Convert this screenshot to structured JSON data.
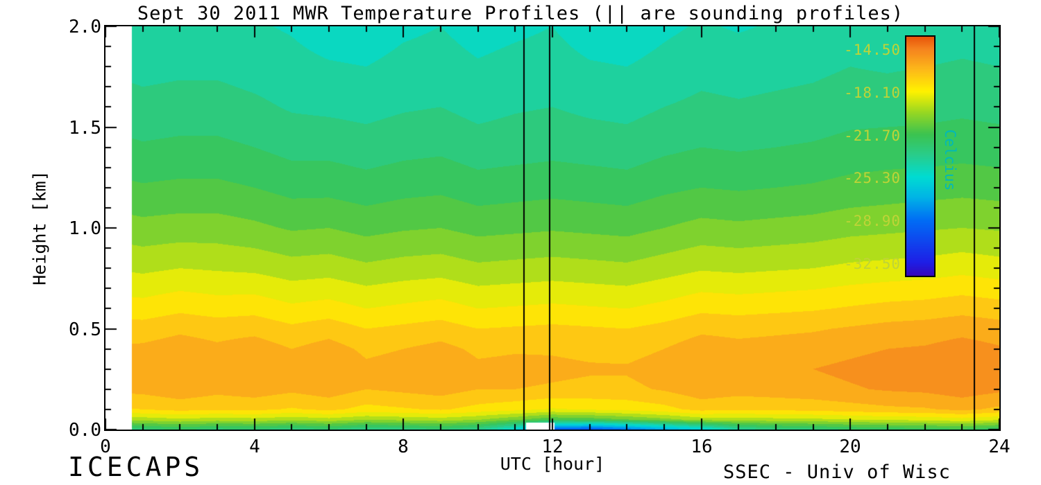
{
  "title": "Sept 30 2011 MWR Temperature Profiles (|| are sounding profiles)",
  "xlabel": "UTC [hour]",
  "ylabel": "Height [km]",
  "footer_left": "ICECAPS",
  "footer_right": "SSEC - Univ of Wisc",
  "axes": {
    "x_tick_labels": [
      "0",
      "4",
      "8",
      "12",
      "16",
      "20",
      "24"
    ],
    "x_tick_values": [
      0,
      4,
      8,
      12,
      16,
      20,
      24
    ],
    "x_minor_step_hours": 1,
    "y_tick_labels": [
      "2.0",
      "1.5",
      "1.0",
      "0.5",
      "0.0"
    ],
    "y_tick_values": [
      2.0,
      1.5,
      1.0,
      0.5,
      0.0
    ],
    "y_minor_step_km": 0.1
  },
  "colorbar": {
    "label": "Celcius",
    "ticks": [
      "-14.50",
      "-18.10",
      "-21.70",
      "-25.30",
      "-28.90",
      "-32.50"
    ],
    "tick_values": [
      -14.5,
      -18.1,
      -21.7,
      -25.3,
      -28.9,
      -32.5
    ],
    "top_value_c": -13.5,
    "bottom_value_c": -33.6,
    "tick_text_color": "#bfd437",
    "label_text_color": "#00b9b9"
  },
  "chart_data": {
    "type": "heatmap",
    "title": "Sept 30 2011 MWR Temperature Profiles (|| are sounding profiles)",
    "xlabel": "UTC [hour]",
    "ylabel": "Height [km]",
    "x_range_hours": [
      0,
      24
    ],
    "y_range_km": [
      0,
      2
    ],
    "data_start_hour": 0.7,
    "sounding_line_hours": [
      11.23,
      11.92,
      23.33
    ],
    "surface_gap": {
      "start_hour": 11.3,
      "end_hour": 12.05,
      "max_height_km": 0.035
    },
    "contour_interval_c": 0.9,
    "contour_ref_c": -14.5,
    "x_hours": [
      0,
      1,
      2,
      3,
      4,
      5,
      6,
      7,
      8,
      9,
      10,
      11,
      12,
      13,
      14,
      15,
      16,
      17,
      18,
      19,
      20,
      21,
      22,
      23,
      24
    ],
    "y_heights_km": [
      0.0,
      0.05,
      0.1,
      0.2,
      0.3,
      0.4,
      0.5,
      0.6,
      0.8,
      1.0,
      1.2,
      1.4,
      1.6,
      1.8,
      2.0
    ],
    "temperature_c_by_level": [
      [
        -23.5,
        -23.0,
        -22.5,
        -23.0,
        -22.8,
        -23.2,
        -22.8,
        -23.5,
        -23.2,
        -22.8,
        -23.5,
        -25.5,
        -29.8,
        -30.2,
        -29.0,
        -27.5,
        -26.0,
        -24.0,
        -23.2,
        -23.0,
        -22.6,
        -22.4,
        -22.2,
        -22.0,
        -22.5
      ],
      [
        -19.8,
        -19.5,
        -19.2,
        -19.4,
        -19.3,
        -19.6,
        -19.3,
        -19.8,
        -19.6,
        -19.4,
        -19.8,
        -20.6,
        -21.5,
        -21.3,
        -20.8,
        -20.2,
        -19.5,
        -19.4,
        -19.3,
        -19.2,
        -19.0,
        -18.8,
        -18.7,
        -18.4,
        -18.8
      ],
      [
        -17.4,
        -17.2,
        -16.9,
        -17.1,
        -17.0,
        -17.3,
        -17.0,
        -17.5,
        -17.3,
        -17.1,
        -17.5,
        -17.8,
        -18.2,
        -18.0,
        -17.8,
        -17.5,
        -16.9,
        -17.1,
        -17.0,
        -16.9,
        -16.7,
        -16.5,
        -16.4,
        -16.1,
        -16.5
      ],
      [
        -16.1,
        -16.0,
        -15.7,
        -16.0,
        -15.8,
        -16.1,
        -15.8,
        -16.3,
        -16.1,
        -15.9,
        -16.3,
        -16.3,
        -16.4,
        -16.5,
        -16.5,
        -16.2,
        -15.7,
        -15.9,
        -15.8,
        -15.7,
        -15.5,
        -15.3,
        -15.2,
        -14.9,
        -15.2
      ],
      [
        -15.9,
        -15.8,
        -15.4,
        -15.8,
        -15.4,
        -15.9,
        -15.4,
        -16.1,
        -15.9,
        -15.5,
        -16.1,
        -16.0,
        -16.1,
        -16.2,
        -16.2,
        -15.9,
        -15.4,
        -15.6,
        -15.5,
        -15.4,
        -15.2,
        -15.0,
        -14.9,
        -14.6,
        -14.9
      ],
      [
        -16.2,
        -16.1,
        -15.8,
        -16.1,
        -15.8,
        -16.3,
        -15.9,
        -16.5,
        -16.3,
        -16.0,
        -16.5,
        -16.4,
        -16.4,
        -16.5,
        -16.6,
        -16.3,
        -15.8,
        -16.0,
        -15.9,
        -15.8,
        -15.6,
        -15.4,
        -15.3,
        -15.0,
        -15.3
      ],
      [
        -16.8,
        -16.8,
        -16.5,
        -16.7,
        -16.6,
        -17.0,
        -16.7,
        -17.2,
        -17.0,
        -16.8,
        -17.2,
        -17.1,
        -17.0,
        -17.1,
        -17.2,
        -16.9,
        -16.5,
        -16.6,
        -16.5,
        -16.4,
        -16.2,
        -16.0,
        -15.9,
        -15.7,
        -15.9
      ],
      [
        -17.6,
        -17.7,
        -17.4,
        -17.6,
        -17.5,
        -17.9,
        -17.7,
        -18.1,
        -17.9,
        -17.7,
        -18.1,
        -18.0,
        -17.9,
        -18.0,
        -18.1,
        -17.8,
        -17.4,
        -17.5,
        -17.4,
        -17.3,
        -17.1,
        -16.9,
        -16.8,
        -16.6,
        -16.8
      ],
      [
        -19.0,
        -19.2,
        -19.0,
        -19.1,
        -19.2,
        -19.5,
        -19.4,
        -19.7,
        -19.5,
        -19.4,
        -19.7,
        -19.6,
        -19.5,
        -19.6,
        -19.7,
        -19.4,
        -19.1,
        -19.2,
        -19.1,
        -19.0,
        -18.8,
        -18.7,
        -18.6,
        -18.4,
        -18.6
      ],
      [
        -20.3,
        -20.5,
        -20.4,
        -20.4,
        -20.6,
        -20.9,
        -20.8,
        -21.1,
        -20.9,
        -20.8,
        -21.1,
        -21.0,
        -20.9,
        -21.0,
        -21.1,
        -20.8,
        -20.5,
        -20.6,
        -20.5,
        -20.4,
        -20.2,
        -20.1,
        -20.0,
        -19.9,
        -20.0
      ],
      [
        -21.4,
        -21.6,
        -21.5,
        -21.5,
        -21.7,
        -22.0,
        -22.0,
        -22.2,
        -22.0,
        -21.9,
        -22.2,
        -22.1,
        -22.0,
        -22.1,
        -22.2,
        -21.9,
        -21.7,
        -21.8,
        -21.7,
        -21.6,
        -21.4,
        -21.3,
        -21.2,
        -21.1,
        -21.2
      ],
      [
        -22.3,
        -22.5,
        -22.4,
        -22.4,
        -22.6,
        -22.9,
        -22.9,
        -23.1,
        -22.9,
        -22.8,
        -23.1,
        -23.0,
        -22.9,
        -23.0,
        -23.1,
        -22.8,
        -22.6,
        -22.7,
        -22.6,
        -22.5,
        -22.3,
        -22.2,
        -22.2,
        -22.1,
        -22.2
      ],
      [
        -23.0,
        -23.2,
        -23.1,
        -23.1,
        -23.3,
        -23.6,
        -23.7,
        -23.8,
        -23.6,
        -23.5,
        -23.8,
        -23.6,
        -23.5,
        -23.7,
        -23.8,
        -23.5,
        -23.3,
        -23.4,
        -23.3,
        -23.2,
        -23.0,
        -23.0,
        -22.9,
        -22.8,
        -22.9
      ],
      [
        -23.6,
        -23.8,
        -23.7,
        -23.7,
        -23.9,
        -24.1,
        -24.3,
        -24.4,
        -24.1,
        -24.0,
        -24.3,
        -24.1,
        -24.0,
        -24.3,
        -24.4,
        -24.1,
        -23.8,
        -23.9,
        -23.8,
        -23.7,
        -23.5,
        -23.6,
        -23.5,
        -23.4,
        -23.5
      ],
      [
        -24.0,
        -24.3,
        -24.2,
        -24.1,
        -24.3,
        -24.5,
        -24.9,
        -25.0,
        -24.6,
        -24.4,
        -24.8,
        -24.6,
        -24.4,
        -24.9,
        -25.0,
        -24.6,
        -24.3,
        -24.5,
        -24.3,
        -24.2,
        -24.0,
        -24.2,
        -24.1,
        -23.9,
        -24.0
      ]
    ],
    "colormap_stops": [
      [
        -34.0,
        "#3c00aa"
      ],
      [
        -32.5,
        "#1e1ee6"
      ],
      [
        -28.9,
        "#006ef5"
      ],
      [
        -27.0,
        "#00b4e6"
      ],
      [
        -25.3,
        "#00dcd2"
      ],
      [
        -23.5,
        "#28cd8c"
      ],
      [
        -21.7,
        "#3cc350"
      ],
      [
        -19.9,
        "#96d723"
      ],
      [
        -18.1,
        "#fff200"
      ],
      [
        -16.3,
        "#fdba19"
      ],
      [
        -14.5,
        "#f5821e"
      ],
      [
        -13.0,
        "#e13c00"
      ]
    ],
    "legend_position": "upper right inset colorbar",
    "grid": false
  }
}
